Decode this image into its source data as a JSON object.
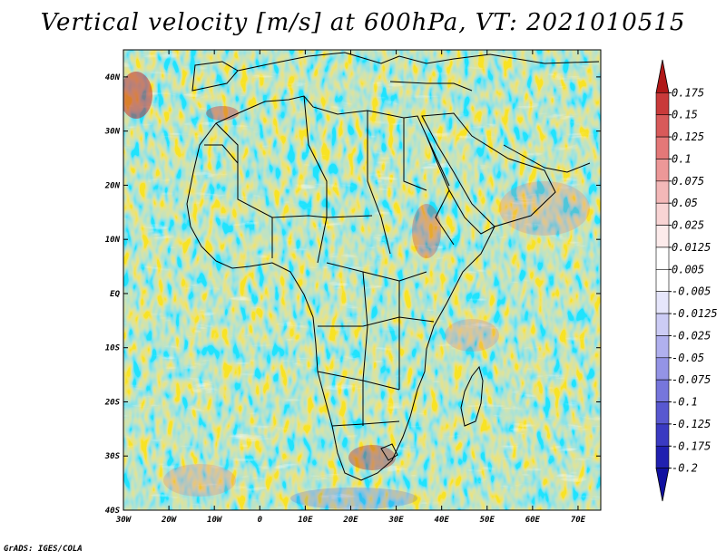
{
  "title": "Vertical velocity [m/s] at 600hPa, VT: 2021010515",
  "footer": "GrADS: IGES/COLA",
  "map": {
    "variable": "Vertical velocity",
    "units": "m/s",
    "level": "600hPa",
    "valid_time": "2021010515",
    "lon_range": [
      -30,
      75
    ],
    "lat_range": [
      -40,
      45
    ],
    "lon_ticks": [
      "30W",
      "20W",
      "10W",
      "0",
      "10E",
      "20E",
      "30E",
      "40E",
      "50E",
      "60E",
      "70E"
    ],
    "lat_ticks": [
      "40S",
      "30S",
      "20S",
      "10S",
      "EQ",
      "10N",
      "20N",
      "30N",
      "40N"
    ]
  },
  "colorbar": {
    "labels": [
      "0.175",
      "0.15",
      "0.125",
      "0.1",
      "0.075",
      "0.05",
      "0.025",
      "0.0125",
      "0.005",
      "-0.005",
      "-0.0125",
      "-0.025",
      "-0.05",
      "-0.075",
      "-0.1",
      "-0.125",
      "-0.175",
      "-0.2"
    ],
    "colors": [
      "#b01818",
      "#c93a3a",
      "#d85a5a",
      "#e47878",
      "#ec9898",
      "#f3b8b8",
      "#f8d4d4",
      "#fcebeb",
      "#ffffff",
      "#ffffff",
      "#e6e6fb",
      "#ccccf5",
      "#b0b0ee",
      "#9494e6",
      "#7676dc",
      "#5858d0",
      "#3a3ac2",
      "#2020b0",
      "#1010a0"
    ]
  }
}
